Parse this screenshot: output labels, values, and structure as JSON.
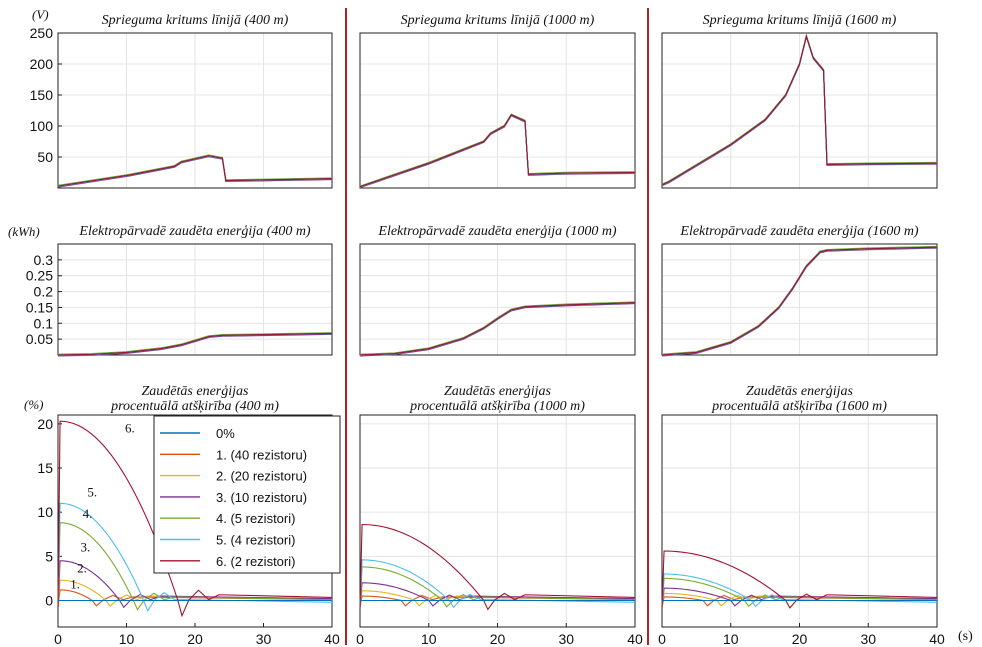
{
  "units": {
    "voltage": "(V)",
    "energy": "(kWh)",
    "percent": "(%)",
    "time": "(s)"
  },
  "colors": [
    "#0072BD",
    "#D95319",
    "#EDB120",
    "#7E2F8E",
    "#77AC30",
    "#4DBEEE",
    "#A2142F"
  ],
  "legend": {
    "items": [
      "0%",
      "1. (40 rezistoru)",
      "2. (20 rezistoru)",
      "3. (10 rezistoru)",
      "4. (5 rezistori)",
      "5. (4 rezistori)",
      "6. (2 rezistori)"
    ]
  },
  "curve_labels": [
    "1.",
    "2.",
    "3.",
    "4.",
    "5.",
    "6."
  ],
  "chart_data": [
    {
      "type": "line",
      "title": "Sprieguma kritums līnijā (400 m)",
      "xlim": [
        0,
        40
      ],
      "ylim": [
        0,
        250
      ],
      "yticks": [
        50,
        100,
        150,
        200,
        250
      ],
      "grid": true,
      "x": [
        0,
        10,
        17,
        18,
        20,
        22,
        24,
        24.5,
        30,
        40
      ],
      "y": [
        3,
        20,
        35,
        42,
        47,
        52,
        48,
        12,
        13,
        15
      ]
    },
    {
      "type": "line",
      "title": "Sprieguma kritums līnijā (1000 m)",
      "xlim": [
        0,
        40
      ],
      "ylim": [
        0,
        250
      ],
      "grid": true,
      "x": [
        0,
        10,
        18,
        19,
        21,
        22,
        24,
        24.5,
        30,
        40
      ],
      "y": [
        2,
        40,
        75,
        88,
        100,
        118,
        108,
        22,
        24,
        25
      ]
    },
    {
      "type": "line",
      "title": "Sprieguma kritums līnijā (1600 m)",
      "xlim": [
        0,
        40
      ],
      "ylim": [
        0,
        250
      ],
      "grid": true,
      "x": [
        0,
        1,
        10,
        15,
        18,
        20,
        21,
        22,
        23.5,
        24,
        30,
        40
      ],
      "y": [
        5,
        10,
        70,
        110,
        150,
        200,
        245,
        210,
        190,
        38,
        39,
        40
      ]
    },
    {
      "type": "line",
      "title": "Elektropārvadē zaudēta enerģija (400 m)",
      "xlim": [
        0,
        40
      ],
      "ylim": [
        0,
        0.35
      ],
      "yticks": [
        0.05,
        0.1,
        0.15,
        0.2,
        0.25,
        0.3
      ],
      "grid": true,
      "x": [
        0,
        5,
        10,
        15,
        18,
        20,
        22,
        24,
        30,
        40
      ],
      "y": [
        0,
        0.002,
        0.008,
        0.02,
        0.032,
        0.045,
        0.058,
        0.062,
        0.064,
        0.068
      ]
    },
    {
      "type": "line",
      "title": "Elektropārvadē zaudēta enerģija (1000 m)",
      "xlim": [
        0,
        40
      ],
      "ylim": [
        0,
        0.35
      ],
      "grid": true,
      "x": [
        0,
        5,
        10,
        15,
        18,
        20,
        22,
        24,
        30,
        40
      ],
      "y": [
        0,
        0.004,
        0.02,
        0.052,
        0.085,
        0.115,
        0.142,
        0.152,
        0.158,
        0.165
      ]
    },
    {
      "type": "line",
      "title": "Elektropārvadē zaudēta enerģija (1600 m)",
      "xlim": [
        0,
        40
      ],
      "ylim": [
        0,
        0.35
      ],
      "grid": true,
      "x": [
        0,
        5,
        10,
        14,
        17,
        19,
        21,
        23,
        24,
        30,
        40
      ],
      "y": [
        0,
        0.008,
        0.04,
        0.09,
        0.15,
        0.21,
        0.28,
        0.325,
        0.33,
        0.335,
        0.34
      ]
    },
    {
      "type": "line",
      "title": "Zaudētās enerģijas procentuālā atšķirība (400 m)",
      "title_lines": [
        "Zaudētās enerģijas",
        "procentuālā atšķirība (400 m)"
      ],
      "xlim": [
        0,
        40
      ],
      "ylim": [
        -3,
        21
      ],
      "yticks": [
        0,
        5,
        10,
        15,
        20
      ],
      "xticks": [
        0,
        10,
        20,
        30,
        40
      ],
      "grid": false,
      "series_peaks": [
        0,
        1.2,
        2.3,
        4.5,
        8.8,
        11.0,
        20.3
      ],
      "series_zero_crossings": [
        0,
        5,
        7,
        9,
        11,
        12.5,
        17.5
      ]
    },
    {
      "type": "line",
      "title": "Zaudētās enerģijas procentuālā atšķirība (1000 m)",
      "title_lines": [
        "Zaudētās enerģijas",
        "procentuālā atšķirība (1000 m)"
      ],
      "xlim": [
        0,
        40
      ],
      "ylim": [
        -3,
        21
      ],
      "xticks": [
        0,
        10,
        20,
        30,
        40
      ],
      "grid": true,
      "series_peaks": [
        0,
        0.5,
        1.1,
        2.0,
        3.8,
        4.6,
        8.6
      ],
      "series_zero_crossings": [
        0,
        6,
        8,
        10,
        12,
        13,
        18
      ]
    },
    {
      "type": "line",
      "title": "Zaudētās enerģijas procentuālā atšķirība (1600 m)",
      "title_lines": [
        "Zaudētās enerģijas",
        "procentuālā atšķirība (1600 m)"
      ],
      "xlim": [
        0,
        40
      ],
      "ylim": [
        -3,
        21
      ],
      "xticks": [
        0,
        10,
        20,
        30,
        40
      ],
      "grid": true,
      "series_peaks": [
        0,
        0.4,
        0.8,
        1.4,
        2.5,
        3.0,
        5.6
      ],
      "series_zero_crossings": [
        0,
        6,
        8,
        10,
        12,
        13,
        18
      ]
    }
  ]
}
